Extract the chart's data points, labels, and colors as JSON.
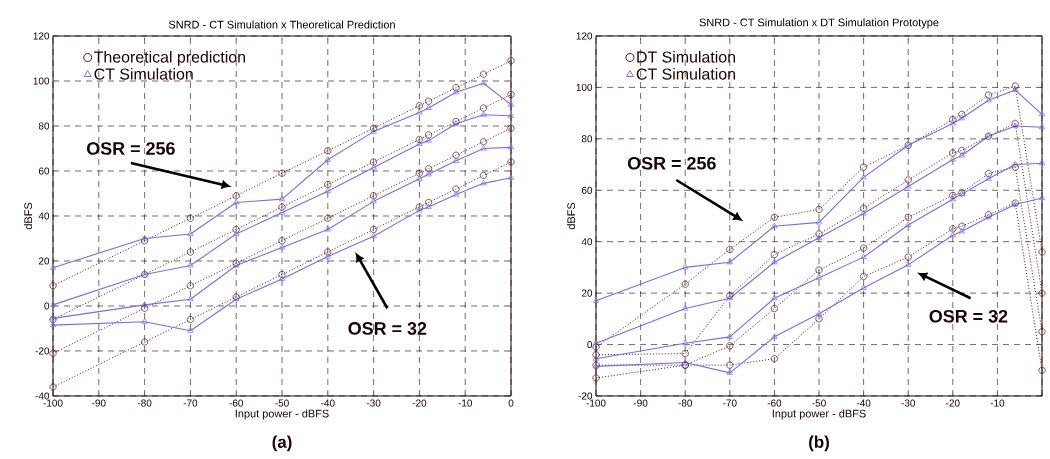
{
  "chart_data": [
    {
      "type": "line",
      "title": "SNRD - CT Simulation x Theoretical Prediction",
      "xlabel": "Input power - dBFS",
      "ylabel": "dBFS",
      "x": [
        -100,
        -80,
        -70,
        -60,
        -50,
        -40,
        -30,
        -20,
        -18,
        -12,
        -6,
        0
      ],
      "xlim": [
        -100,
        0
      ],
      "xticks": [
        -100,
        -90,
        -80,
        -70,
        -60,
        -50,
        -40,
        -30,
        -20,
        -10,
        0
      ],
      "ylim": [
        -40,
        120
      ],
      "yticks": [
        -40,
        -20,
        0,
        20,
        40,
        60,
        80,
        100,
        120
      ],
      "grid": true,
      "legend": "top left",
      "series": [
        {
          "name": "Theoretical prediction",
          "color": "#5c1010",
          "marker": "circle",
          "line_style": "dotted",
          "values": [
            9,
            29,
            39,
            49,
            59,
            69,
            79,
            89,
            91,
            97,
            103,
            109
          ]
        },
        {
          "color": "#5c1010",
          "marker": "circle",
          "line_style": "dotted",
          "values": [
            -6,
            14,
            24,
            34,
            44,
            54,
            64,
            74,
            76,
            82,
            88,
            94
          ]
        },
        {
          "color": "#5c1010",
          "marker": "circle",
          "line_style": "dotted",
          "values": [
            -21,
            -1,
            9,
            19,
            29,
            39,
            49,
            59,
            61,
            67,
            73,
            79
          ]
        },
        {
          "color": "#5c1010",
          "marker": "circle",
          "line_style": "dotted",
          "values": [
            -36,
            -16,
            -6,
            4,
            14,
            24,
            34,
            44,
            46,
            52,
            58,
            64
          ]
        },
        {
          "name": "CT Simulation",
          "color": "#6e6eff",
          "marker": "triangle",
          "line_style": "solid",
          "values": [
            17,
            30,
            32,
            46,
            47.5,
            65,
            77.5,
            86,
            88,
            95,
            99,
            89.5
          ]
        },
        {
          "color": "#6e6eff",
          "marker": "triangle",
          "line_style": "solid",
          "values": [
            0.5,
            14,
            18,
            32,
            41.5,
            51,
            61.5,
            72,
            73.5,
            81,
            85,
            84.5
          ]
        },
        {
          "color": "#6e6eff",
          "marker": "triangle",
          "line_style": "solid",
          "values": [
            -5.5,
            0.5,
            3,
            18,
            26,
            34,
            46.5,
            56.5,
            58.5,
            64.5,
            70,
            70.5
          ]
        },
        {
          "color": "#6e6eff",
          "marker": "triangle",
          "line_style": "solid",
          "values": [
            -8.5,
            -7,
            -11,
            3,
            12,
            22,
            31,
            42.5,
            44,
            49.5,
            54.5,
            57
          ]
        }
      ],
      "annotations": [
        "OSR = 256",
        "OSR = 32",
        "(a)"
      ]
    },
    {
      "type": "line",
      "title": "SNRD - CT Simulation x DT Simulation Prototype",
      "xlabel": "Input power - dBFS",
      "ylabel": "dBFS",
      "x": [
        -100,
        -80,
        -70,
        -60,
        -50,
        -40,
        -30,
        -20,
        -18,
        -12,
        -6,
        0
      ],
      "xlim": [
        -100,
        0
      ],
      "xticks": [
        -100,
        -90,
        -80,
        -70,
        -60,
        -50,
        -40,
        -30,
        -20,
        -10,
        {
          "value": 0,
          "label": null
        }
      ],
      "ylim": [
        -20,
        120
      ],
      "yticks": [
        -20,
        0,
        20,
        40,
        60,
        80,
        100,
        120
      ],
      "grid": true,
      "legend": "top left",
      "series": [
        {
          "name": "DT Simulation",
          "color": "#5c1010",
          "marker": "circle",
          "line_style": "dotted",
          "values": [
            -1,
            23.5,
            37,
            49.5,
            52.5,
            69,
            77.5,
            87.5,
            89.5,
            97,
            100.5,
            36
          ]
        },
        {
          "color": "#5c1010",
          "marker": "circle",
          "line_style": "dotted",
          "values": [
            -4,
            -3.5,
            19,
            35,
            43,
            53,
            64,
            74.5,
            75.5,
            81,
            86,
            20
          ]
        },
        {
          "color": "#5c1010",
          "marker": "circle",
          "line_style": "dotted",
          "values": [
            -8,
            -8,
            -0.5,
            14,
            29,
            37.5,
            49.5,
            58,
            59,
            66.5,
            69,
            5
          ]
        },
        {
          "color": "#5c1010",
          "marker": "circle",
          "line_style": "dotted",
          "values": [
            -13,
            -8,
            -8,
            -5.5,
            10,
            26.5,
            34,
            45,
            46,
            50.5,
            55,
            -10
          ]
        },
        {
          "name": "CT Simulation",
          "color": "#6e6eff",
          "marker": "triangle",
          "line_style": "solid",
          "values": [
            17,
            30,
            32,
            46,
            47.5,
            65,
            77.5,
            86,
            88,
            95,
            99,
            89.5
          ]
        },
        {
          "color": "#6e6eff",
          "marker": "triangle",
          "line_style": "solid",
          "values": [
            0.5,
            14,
            18,
            32,
            41.5,
            51,
            61.5,
            72,
            73.5,
            81,
            85,
            84.5
          ]
        },
        {
          "color": "#6e6eff",
          "marker": "triangle",
          "line_style": "solid",
          "values": [
            -5.5,
            0.5,
            3,
            18,
            26,
            34,
            46.5,
            56.5,
            58.5,
            64.5,
            70,
            70.5
          ]
        },
        {
          "color": "#6e6eff",
          "marker": "triangle",
          "line_style": "solid",
          "values": [
            -8.5,
            -7,
            -11,
            3,
            12,
            22,
            31,
            42.5,
            44,
            49.5,
            54.5,
            57
          ]
        }
      ],
      "annotations": [
        "OSR = 256",
        "OSR = 32",
        "(b)"
      ]
    }
  ]
}
